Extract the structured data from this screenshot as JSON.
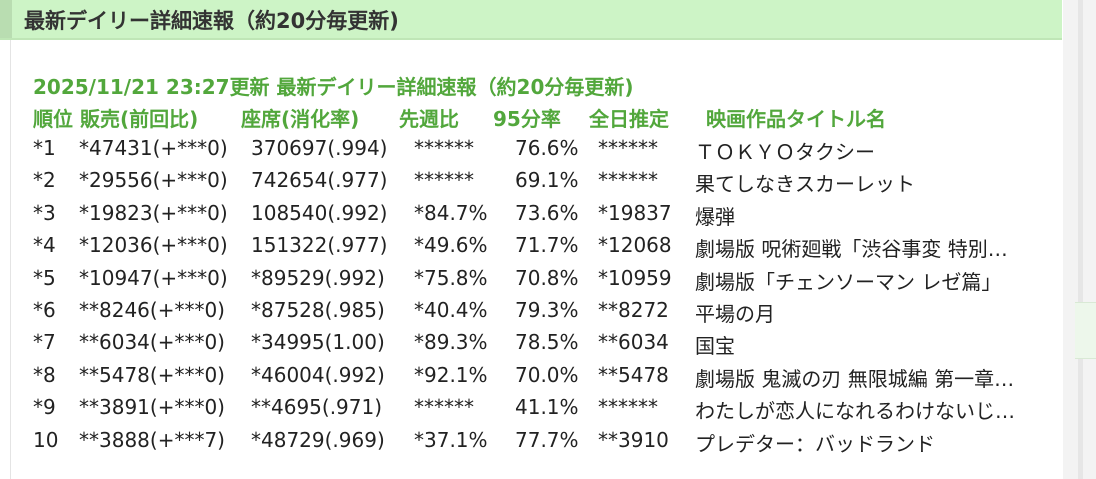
{
  "header": {
    "title": "最新デイリー詳細速報（約20分毎更新)"
  },
  "update_line": "2025/11/21 23:27更新 最新デイリー詳細速報（約20分毎更新)",
  "columns": [
    "順位 販売(前回比)",
    "座席(消化率)",
    "先週比",
    "95分率",
    "全日推定",
    "映画作品タイトル名"
  ],
  "rows": [
    {
      "rank": "*1",
      "sales": "*47431(+***0)",
      "seats": "370697(.994)",
      "week": "******",
      "pct": "76.6%",
      "day": "******",
      "title": "ＴＯＫＹＯタクシー"
    },
    {
      "rank": "*2",
      "sales": "*29556(+***0)",
      "seats": "742654(.977)",
      "week": "******",
      "pct": "69.1%",
      "day": "******",
      "title": "果てしなきスカーレット"
    },
    {
      "rank": "*3",
      "sales": "*19823(+***0)",
      "seats": "108540(.992)",
      "week": "*84.7%",
      "pct": "73.6%",
      "day": "*19837",
      "title": "爆弾"
    },
    {
      "rank": "*4",
      "sales": "*12036(+***0)",
      "seats": "151322(.977)",
      "week": "*49.6%",
      "pct": "71.7%",
      "day": "*12068",
      "title": "劇場版 呪術廻戦「渋谷事変 特別編集版」×「死滅回游 先行上映」"
    },
    {
      "rank": "*5",
      "sales": "*10947(+***0)",
      "seats": "*89529(.992)",
      "week": "*75.8%",
      "pct": "70.8%",
      "day": "*10959",
      "title": "劇場版「チェンソーマン レゼ篇」"
    },
    {
      "rank": "*6",
      "sales": "**8246(+***0)",
      "seats": "*87528(.985)",
      "week": "*40.4%",
      "pct": "79.3%",
      "day": "**8272",
      "title": "平場の月"
    },
    {
      "rank": "*7",
      "sales": "**6034(+***0)",
      "seats": "*34995(1.00)",
      "week": "*89.3%",
      "pct": "78.5%",
      "day": "**6034",
      "title": "国宝"
    },
    {
      "rank": "*8",
      "sales": "**5478(+***0)",
      "seats": "*46004(.992)",
      "week": "*92.1%",
      "pct": "70.0%",
      "day": "**5478",
      "title": "劇場版 鬼滅の刃 無限城編 第一章 猗窩座再来"
    },
    {
      "rank": "*9",
      "sales": "**3891(+***0)",
      "seats": "**4695(.971)",
      "week": "******",
      "pct": "41.1%",
      "day": "******",
      "title": "わたしが恋人になれるわけないじゃん、ムリムリ！"
    },
    {
      "rank": "10",
      "sales": "**3888(+***7)",
      "seats": "*48729(.969)",
      "week": "*37.1%",
      "pct": "77.7%",
      "day": "**3910",
      "title": "プレデター：バッドランド"
    }
  ]
}
